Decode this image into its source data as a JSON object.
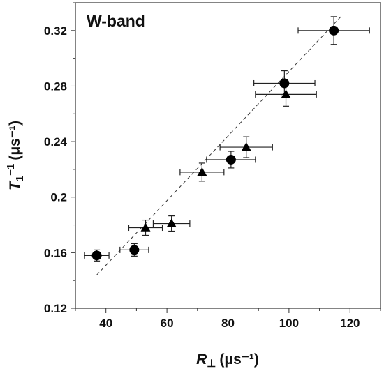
{
  "chart_data": {
    "type": "scatter",
    "title": "W-band",
    "xlabel": {
      "main": "R",
      "sub": "⊥",
      "unit": "(μs⁻¹)"
    },
    "ylabel": {
      "main": "T",
      "sub": "1",
      "sup": "−1",
      "unit": "(μs⁻¹)"
    },
    "xlim": [
      30,
      130
    ],
    "ylim": [
      0.12,
      0.34
    ],
    "xticks": [
      40,
      60,
      80,
      100,
      120
    ],
    "xtick_labels": [
      "40",
      "60",
      "80",
      "100",
      "120"
    ],
    "yticks": [
      0.12,
      0.16,
      0.2,
      0.24,
      0.28,
      0.32
    ],
    "ytick_labels": [
      "0.12",
      "0.16",
      "0.2",
      "0.24",
      "0.28",
      "0.32"
    ],
    "grid": false,
    "series": [
      {
        "marker": "circle",
        "points": [
          {
            "x": 37,
            "y": 0.158,
            "xerr": 4,
            "yerr": 0.004
          },
          {
            "x": 49.3,
            "y": 0.162,
            "xerr": 4.7,
            "yerr": 0.0045
          },
          {
            "x": 81,
            "y": 0.227,
            "xerr": 8,
            "yerr": 0.006
          },
          {
            "x": 98.5,
            "y": 0.282,
            "xerr": 10,
            "yerr": 0.009
          },
          {
            "x": 114.7,
            "y": 0.32,
            "xerr": 11.7,
            "yerr": 0.01
          }
        ]
      },
      {
        "marker": "triangle",
        "points": [
          {
            "x": 53,
            "y": 0.178,
            "xerr": 5.5,
            "yerr": 0.0055
          },
          {
            "x": 61.5,
            "y": 0.181,
            "xerr": 6,
            "yerr": 0.0055
          },
          {
            "x": 71.5,
            "y": 0.218,
            "xerr": 7.2,
            "yerr": 0.0065
          },
          {
            "x": 86,
            "y": 0.236,
            "xerr": 8.6,
            "yerr": 0.0075
          },
          {
            "x": 99,
            "y": 0.274,
            "xerr": 10,
            "yerr": 0.0085
          }
        ]
      }
    ],
    "fit_line": {
      "style": "dashed",
      "from": {
        "x": 37,
        "y": 0.144
      },
      "to": {
        "x": 117,
        "y": 0.33
      }
    }
  }
}
